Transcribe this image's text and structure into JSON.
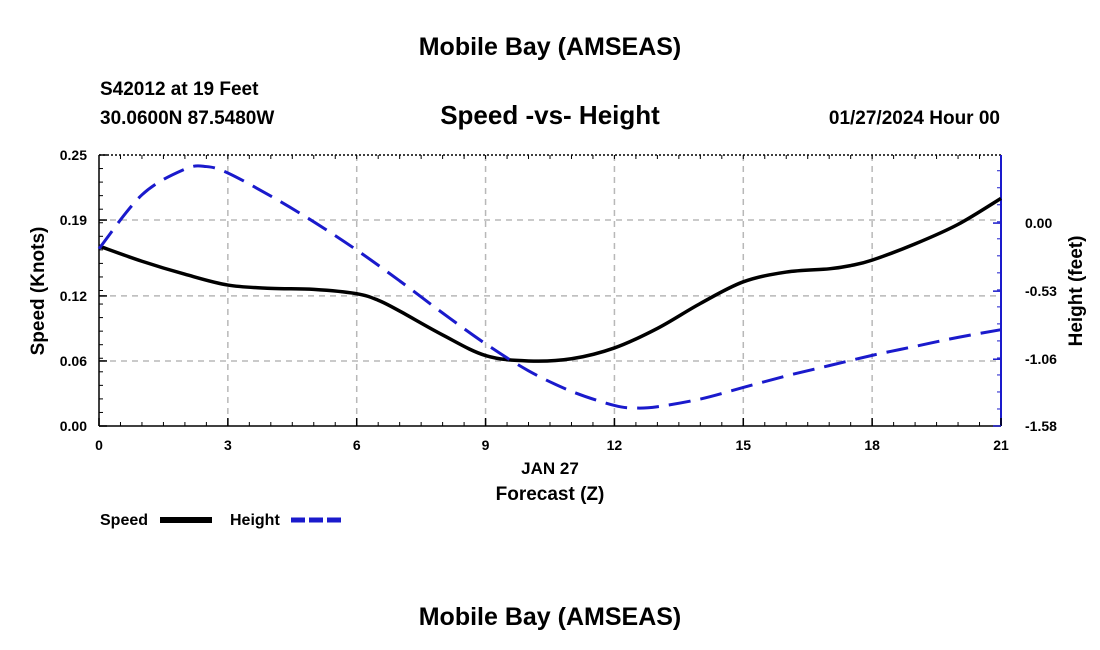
{
  "page": {
    "title": "Mobile Bay (AMSEAS)",
    "station": "S42012 at 19 Feet",
    "location": "30.0600N  87.5480W",
    "datetime": "01/27/2024 Hour 00",
    "second_title": "Mobile Bay (AMSEAS)"
  },
  "chart_data": {
    "type": "line",
    "title": "Speed -vs- Height",
    "xlabel": "Forecast (Z)",
    "xsublabel": "JAN 27",
    "ylabel": "Speed (Knots)",
    "y2label": "Height (feet)",
    "xlim": [
      0,
      21
    ],
    "ylim": [
      0,
      0.25
    ],
    "y2lim": [
      -1.58,
      0.53
    ],
    "grid": true,
    "x_ticks": [
      "0",
      "3",
      "6",
      "9",
      "12",
      "15",
      "18",
      "21"
    ],
    "y_ticks": [
      "0.00",
      "0.06",
      "0.12",
      "0.19",
      "0.25"
    ],
    "y2_ticks": [
      "-1.58",
      "-1.06",
      "-0.53",
      "0.00"
    ],
    "series": [
      {
        "name": "Speed",
        "axis": "left",
        "color": "#000000",
        "style": "solid",
        "x": [
          0,
          1,
          2,
          3,
          4,
          5,
          6,
          6.5,
          7,
          8,
          9,
          10,
          11,
          12,
          13,
          14,
          15,
          16,
          17,
          17.5,
          18,
          19,
          20,
          21
        ],
        "values": [
          0.166,
          0.152,
          0.14,
          0.13,
          0.127,
          0.126,
          0.122,
          0.116,
          0.106,
          0.084,
          0.065,
          0.06,
          0.062,
          0.072,
          0.09,
          0.113,
          0.133,
          0.142,
          0.145,
          0.148,
          0.153,
          0.168,
          0.186,
          0.21
        ]
      },
      {
        "name": "Height",
        "axis": "right",
        "color": "#1a1acc",
        "style": "dashed",
        "x": [
          0,
          1,
          2,
          2.5,
          3,
          4,
          5,
          6,
          7,
          8,
          9,
          10,
          11,
          12,
          12.5,
          13,
          14,
          15,
          16,
          17,
          18,
          19,
          20,
          21
        ],
        "values": [
          -0.2,
          0.22,
          0.42,
          0.44,
          0.39,
          0.21,
          0.01,
          -0.21,
          -0.45,
          -0.7,
          -0.94,
          -1.15,
          -1.31,
          -1.42,
          -1.44,
          -1.43,
          -1.37,
          -1.28,
          -1.19,
          -1.11,
          -1.03,
          -0.96,
          -0.89,
          -0.83
        ]
      }
    ],
    "legend": {
      "position": "bottom-left",
      "items": [
        "Speed",
        "Height"
      ]
    }
  }
}
